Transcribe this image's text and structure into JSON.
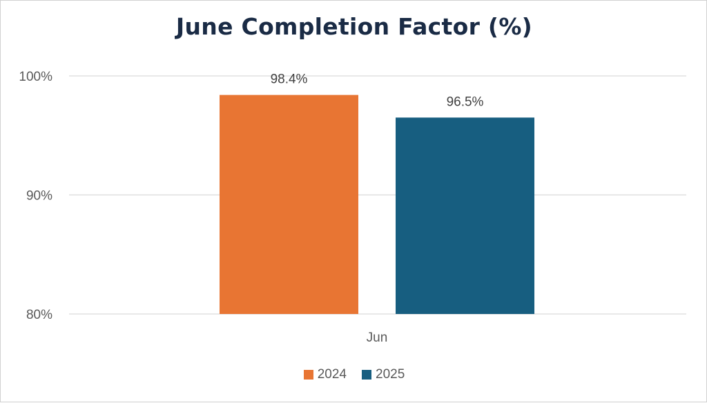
{
  "chart_data": {
    "type": "bar",
    "title": "June Completion Factor (%)",
    "categories": [
      "Jun"
    ],
    "series": [
      {
        "name": "2024",
        "values": [
          98.4
        ],
        "label": "98.4%",
        "color": "#e87533"
      },
      {
        "name": "2025",
        "values": [
          96.5
        ],
        "label": "96.5%",
        "color": "#175e80"
      }
    ],
    "ylim": [
      80,
      100
    ],
    "yticks": [
      {
        "value": 80,
        "label": "80%"
      },
      {
        "value": 90,
        "label": "90%"
      },
      {
        "value": 100,
        "label": "100%"
      }
    ],
    "grid": true,
    "legend_position": "bottom",
    "xlabel": "",
    "ylabel": ""
  }
}
